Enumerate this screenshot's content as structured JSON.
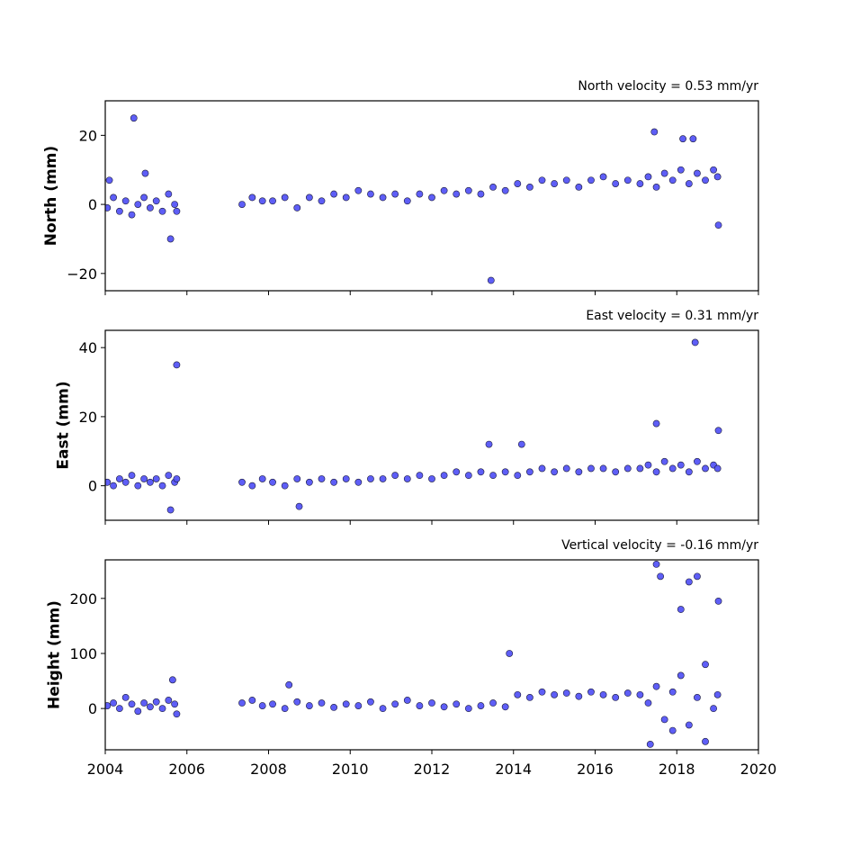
{
  "chart_data": [
    {
      "type": "scatter",
      "title": "North velocity = 0.53 mm/yr",
      "ylabel": "North (mm)",
      "color": "#5555f5",
      "xlim": [
        2004,
        2020
      ],
      "xticks": [
        2004,
        2006,
        2008,
        2010,
        2012,
        2014,
        2016,
        2018,
        2020
      ],
      "ylim": [
        -25,
        30
      ],
      "yticks": [
        -20,
        0,
        20
      ],
      "x": [
        2004.05,
        2004.2,
        2004.35,
        2004.5,
        2004.65,
        2004.8,
        2004.95,
        2005.1,
        2005.25,
        2005.4,
        2005.55,
        2005.7,
        2005.75,
        2007.35,
        2007.6,
        2007.85,
        2008.1,
        2008.4,
        2008.7,
        2009.0,
        2009.3,
        2009.6,
        2009.9,
        2010.2,
        2010.5,
        2010.8,
        2011.1,
        2011.4,
        2011.7,
        2012.0,
        2012.3,
        2012.6,
        2012.9,
        2013.2,
        2013.5,
        2013.8,
        2014.1,
        2014.4,
        2014.7,
        2015.0,
        2015.3,
        2015.6,
        2015.9,
        2016.2,
        2016.5,
        2016.8,
        2017.1,
        2017.3,
        2017.5,
        2017.7,
        2017.9,
        2018.1,
        2018.3,
        2018.5,
        2018.7,
        2018.9,
        2019.0,
        2004.7,
        2004.1,
        2005.6,
        2013.45,
        2017.45,
        2018.15,
        2018.4,
        2019.02,
        2004.98
      ],
      "values": [
        -1,
        2,
        -2,
        1,
        -3,
        0,
        2,
        -1,
        1,
        -2,
        3,
        0,
        -2,
        0,
        2,
        1,
        1,
        2,
        -1,
        2,
        1,
        3,
        2,
        4,
        3,
        2,
        3,
        1,
        3,
        2,
        4,
        3,
        4,
        3,
        5,
        4,
        6,
        5,
        7,
        6,
        7,
        5,
        7,
        8,
        6,
        7,
        6,
        8,
        5,
        9,
        7,
        10,
        6,
        9,
        7,
        10,
        8,
        25,
        7,
        -10,
        -22,
        21,
        19,
        19,
        -6,
        9
      ]
    },
    {
      "type": "scatter",
      "title": "East velocity = 0.31 mm/yr",
      "ylabel": "East (mm)",
      "color": "#5555f5",
      "xlim": [
        2004,
        2020
      ],
      "xticks": [
        2004,
        2006,
        2008,
        2010,
        2012,
        2014,
        2016,
        2018,
        2020
      ],
      "ylim": [
        -10,
        45
      ],
      "yticks": [
        0,
        20,
        40
      ],
      "x": [
        2004.05,
        2004.2,
        2004.35,
        2004.5,
        2004.65,
        2004.8,
        2004.95,
        2005.1,
        2005.25,
        2005.4,
        2005.55,
        2005.7,
        2005.75,
        2007.35,
        2007.6,
        2007.85,
        2008.1,
        2008.4,
        2008.7,
        2009.0,
        2009.3,
        2009.6,
        2009.9,
        2010.2,
        2010.5,
        2010.8,
        2011.1,
        2011.4,
        2011.7,
        2012.0,
        2012.3,
        2012.6,
        2012.9,
        2013.2,
        2013.5,
        2013.8,
        2014.1,
        2014.4,
        2014.7,
        2015.0,
        2015.3,
        2015.6,
        2015.9,
        2016.2,
        2016.5,
        2016.8,
        2017.1,
        2017.3,
        2017.5,
        2017.7,
        2017.9,
        2018.1,
        2018.3,
        2018.5,
        2018.7,
        2018.9,
        2019.0,
        2005.75,
        2018.45,
        2005.6,
        2017.5,
        2013.4,
        2008.75,
        2019.02,
        2014.2
      ],
      "values": [
        1,
        0,
        2,
        1,
        3,
        0,
        2,
        1,
        2,
        0,
        3,
        1,
        2,
        1,
        0,
        2,
        1,
        0,
        2,
        1,
        2,
        1,
        2,
        1,
        2,
        2,
        3,
        2,
        3,
        2,
        3,
        4,
        3,
        4,
        3,
        4,
        3,
        4,
        5,
        4,
        5,
        4,
        5,
        5,
        4,
        5,
        5,
        6,
        4,
        7,
        5,
        6,
        4,
        7,
        5,
        6,
        5,
        35,
        41.5,
        -7,
        18,
        12,
        -6,
        16,
        12
      ]
    },
    {
      "type": "scatter",
      "title": "Vertical velocity = -0.16 mm/yr",
      "ylabel": "Height (mm)",
      "color": "#5555f5",
      "xlim": [
        2004,
        2020
      ],
      "xticks": [
        2004,
        2006,
        2008,
        2010,
        2012,
        2014,
        2016,
        2018,
        2020
      ],
      "ylim": [
        -75,
        270
      ],
      "yticks": [
        0,
        100,
        200
      ],
      "x": [
        2004.05,
        2004.2,
        2004.35,
        2004.5,
        2004.65,
        2004.8,
        2004.95,
        2005.1,
        2005.25,
        2005.4,
        2005.55,
        2005.7,
        2005.75,
        2007.35,
        2007.6,
        2007.85,
        2008.1,
        2008.4,
        2008.7,
        2009.0,
        2009.3,
        2009.6,
        2009.9,
        2010.2,
        2010.5,
        2010.8,
        2011.1,
        2011.4,
        2011.7,
        2012.0,
        2012.3,
        2012.6,
        2012.9,
        2013.2,
        2013.5,
        2013.8,
        2014.1,
        2014.4,
        2014.7,
        2015.0,
        2015.3,
        2015.6,
        2015.9,
        2016.2,
        2016.5,
        2016.8,
        2017.1,
        2017.3,
        2017.5,
        2017.7,
        2017.9,
        2018.1,
        2018.3,
        2018.5,
        2018.7,
        2018.9,
        2019.0,
        2013.9,
        2017.5,
        2017.6,
        2017.35,
        2018.3,
        2018.5,
        2018.7,
        2019.02,
        2018.1,
        2017.9,
        2005.65,
        2008.5
      ],
      "values": [
        5,
        10,
        0,
        20,
        8,
        -5,
        10,
        3,
        12,
        0,
        15,
        8,
        -10,
        10,
        15,
        5,
        8,
        0,
        12,
        5,
        10,
        2,
        8,
        5,
        12,
        0,
        8,
        15,
        5,
        10,
        3,
        8,
        0,
        5,
        10,
        3,
        25,
        20,
        30,
        25,
        28,
        22,
        30,
        25,
        20,
        28,
        25,
        10,
        40,
        -20,
        30,
        60,
        -30,
        20,
        80,
        0,
        25,
        100,
        262,
        240,
        -65,
        230,
        240,
        -60,
        195,
        180,
        -40,
        52,
        43
      ]
    }
  ]
}
